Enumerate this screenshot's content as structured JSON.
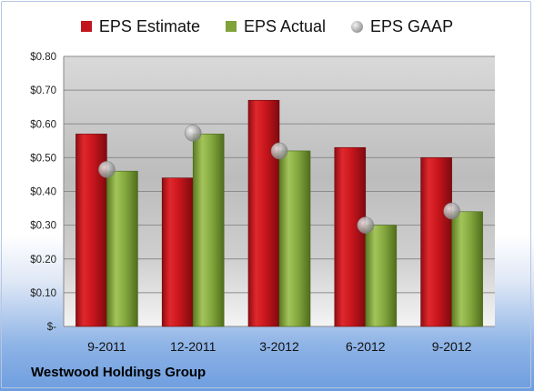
{
  "chart_data": {
    "type": "bar",
    "title": "",
    "footer": "Westwood Holdings Group",
    "categories": [
      "9-2011",
      "12-2011",
      "3-2012",
      "6-2012",
      "9-2012"
    ],
    "series": [
      {
        "name": "EPS Estimate",
        "type": "bar",
        "color": "#c0161c",
        "values": [
          0.57,
          0.44,
          0.67,
          0.53,
          0.5
        ]
      },
      {
        "name": "EPS Actual",
        "type": "bar",
        "color": "#7fa23a",
        "values": [
          0.46,
          0.57,
          0.52,
          0.3,
          0.34
        ]
      },
      {
        "name": "EPS GAAP",
        "type": "scatter",
        "color": "#a6a6a6",
        "values": [
          0.465,
          0.573,
          0.52,
          0.3,
          0.342
        ]
      }
    ],
    "yticks": [
      "$-",
      "$0.10",
      "$0.20",
      "$0.30",
      "$0.40",
      "$0.50",
      "$0.60",
      "$0.70",
      "$0.80"
    ],
    "ylim": [
      0,
      0.8
    ],
    "grid": true,
    "legend_position": "top"
  }
}
